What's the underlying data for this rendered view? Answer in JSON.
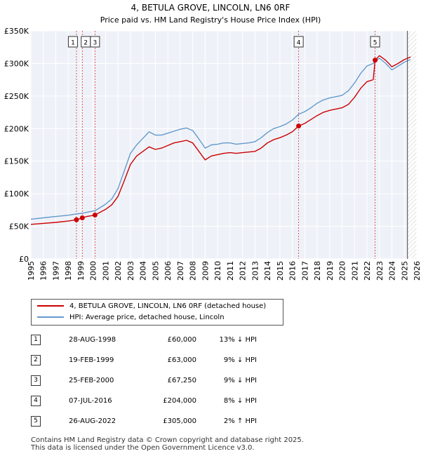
{
  "chart_data": {
    "type": "line",
    "title": "4, BETULA GROVE, LINCOLN, LN6 0RF",
    "subtitle": "Price paid vs. HM Land Registry's House Price Index (HPI)",
    "xlim": [
      1995,
      2026
    ],
    "ylim": [
      0,
      350000
    ],
    "x_ticks": [
      "1995",
      "1996",
      "1997",
      "1998",
      "1999",
      "2000",
      "2001",
      "2002",
      "2003",
      "2004",
      "2005",
      "2006",
      "2007",
      "2008",
      "2009",
      "2010",
      "2011",
      "2012",
      "2013",
      "2014",
      "2015",
      "2016",
      "2017",
      "2018",
      "2019",
      "2020",
      "2021",
      "2022",
      "2023",
      "2024",
      "2025",
      "2026"
    ],
    "y_ticks": [
      {
        "value": 0,
        "label": "£0"
      },
      {
        "value": 50000,
        "label": "£50K"
      },
      {
        "value": 100000,
        "label": "£100K"
      },
      {
        "value": 150000,
        "label": "£150K"
      },
      {
        "value": 200000,
        "label": "£200K"
      },
      {
        "value": 250000,
        "label": "£250K"
      },
      {
        "value": 300000,
        "label": "£300K"
      },
      {
        "value": 350000,
        "label": "£350K"
      }
    ],
    "grid": true,
    "forecast_start": 2025.25,
    "series": [
      {
        "name": "4, BETULA GROVE, LINCOLN, LN6 0RF (detached house)",
        "color": "#cc0000",
        "x": [
          1995.0,
          1996.0,
          1997.0,
          1998.0,
          1998.66,
          1999.13,
          1999.5,
          2000.15,
          2000.5,
          2001.0,
          2001.5,
          2002.0,
          2002.5,
          2003.0,
          2003.5,
          2004.0,
          2004.5,
          2005.0,
          2005.5,
          2006.0,
          2006.5,
          2007.0,
          2007.5,
          2008.0,
          2008.5,
          2009.0,
          2009.5,
          2010.0,
          2010.5,
          2011.0,
          2011.5,
          2012.0,
          2012.5,
          2013.0,
          2013.5,
          2014.0,
          2014.5,
          2015.0,
          2015.5,
          2016.0,
          2016.51,
          2017.0,
          2017.5,
          2018.0,
          2018.5,
          2019.0,
          2019.5,
          2020.0,
          2020.5,
          2021.0,
          2021.5,
          2022.0,
          2022.5,
          2022.65,
          2023.0,
          2023.5,
          2024.0,
          2024.5,
          2025.0,
          2025.5
        ],
        "y": [
          53000,
          54500,
          56000,
          58000,
          60000,
          63000,
          65000,
          67250,
          71000,
          76000,
          83000,
          96000,
          120000,
          145000,
          158000,
          165000,
          172000,
          168000,
          170000,
          174000,
          178000,
          180000,
          182000,
          178000,
          165000,
          152000,
          158000,
          160000,
          162000,
          163000,
          162000,
          163000,
          164000,
          165000,
          170000,
          178000,
          183000,
          186000,
          190000,
          195000,
          204000,
          208000,
          214000,
          220000,
          225000,
          228000,
          230000,
          232000,
          237000,
          248000,
          262000,
          272000,
          275000,
          305000,
          312000,
          305000,
          295000,
          300000,
          306000,
          310000
        ]
      },
      {
        "name": "HPI: Average price, detached house, Lincoln",
        "color": "#6699cc",
        "x": [
          1995.0,
          1996.0,
          1997.0,
          1998.0,
          1998.66,
          1999.13,
          1999.5,
          2000.15,
          2000.5,
          2001.0,
          2001.5,
          2002.0,
          2002.5,
          2003.0,
          2003.5,
          2004.0,
          2004.5,
          2005.0,
          2005.5,
          2006.0,
          2006.5,
          2007.0,
          2007.5,
          2008.0,
          2008.5,
          2009.0,
          2009.5,
          2010.0,
          2010.5,
          2011.0,
          2011.5,
          2012.0,
          2012.5,
          2013.0,
          2013.5,
          2014.0,
          2014.5,
          2015.0,
          2015.5,
          2016.0,
          2016.51,
          2017.0,
          2017.5,
          2018.0,
          2018.5,
          2019.0,
          2019.5,
          2020.0,
          2020.5,
          2021.0,
          2021.5,
          2022.0,
          2022.5,
          2022.65,
          2023.0,
          2023.5,
          2024.0,
          2024.5,
          2025.0,
          2025.5
        ],
        "y": [
          61000,
          63000,
          65000,
          67000,
          69000,
          70000,
          71500,
          74000,
          78000,
          84000,
          92000,
          108000,
          135000,
          162000,
          175000,
          185000,
          195000,
          190000,
          190000,
          193000,
          196000,
          199000,
          201000,
          197000,
          184000,
          170000,
          175000,
          176000,
          178000,
          178000,
          176000,
          177000,
          178000,
          180000,
          186000,
          194000,
          200000,
          203000,
          207000,
          213000,
          222000,
          226000,
          232000,
          239000,
          244000,
          247000,
          249000,
          251000,
          258000,
          270000,
          285000,
          296000,
          300000,
          303000,
          308000,
          300000,
          290000,
          296000,
          302000,
          306000
        ]
      }
    ],
    "sales": [
      {
        "n": "1",
        "x": 1998.66,
        "y": 60000
      },
      {
        "n": "2",
        "x": 1999.13,
        "y": 63000
      },
      {
        "n": "3",
        "x": 2000.15,
        "y": 67250
      },
      {
        "n": "4",
        "x": 2016.51,
        "y": 204000
      },
      {
        "n": "5",
        "x": 2022.65,
        "y": 305000
      }
    ]
  },
  "legend": {
    "property_label": "4, BETULA GROVE, LINCOLN, LN6 0RF (detached house)",
    "hpi_label": "HPI: Average price, detached house, Lincoln"
  },
  "transactions": [
    {
      "n": "1",
      "date": "28-AUG-1998",
      "price": "£60,000",
      "hpi": "13% ↓ HPI"
    },
    {
      "n": "2",
      "date": "19-FEB-1999",
      "price": "£63,000",
      "hpi": "9% ↓ HPI"
    },
    {
      "n": "3",
      "date": "25-FEB-2000",
      "price": "£67,250",
      "hpi": "9% ↓ HPI"
    },
    {
      "n": "4",
      "date": "07-JUL-2016",
      "price": "£204,000",
      "hpi": "8% ↓ HPI"
    },
    {
      "n": "5",
      "date": "26-AUG-2022",
      "price": "£305,000",
      "hpi": "2% ↑ HPI"
    }
  ],
  "footer": {
    "line1": "Contains HM Land Registry data © Crown copyright and database right 2025.",
    "line2": "This data is licensed under the Open Government Licence v3.0."
  }
}
